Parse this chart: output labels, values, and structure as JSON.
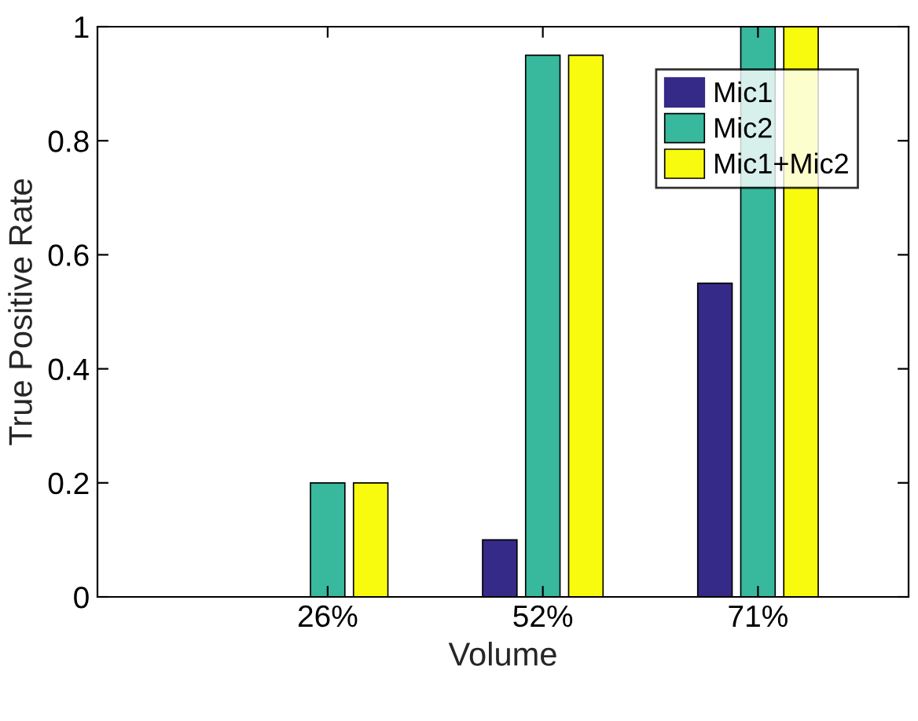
{
  "chart_data": {
    "type": "bar",
    "xlabel": "Volume",
    "ylabel": "True Positive Rate",
    "categories": [
      "26%",
      "52%",
      "71%"
    ],
    "series": [
      {
        "name": "Mic1",
        "color": "#352a87",
        "values": [
          0,
          0.1,
          0.55
        ]
      },
      {
        "name": "Mic2",
        "color": "#38b89d",
        "values": [
          0.2,
          0.95,
          1
        ]
      },
      {
        "name": "Mic1+Mic2",
        "color": "#f9fb0e",
        "values": [
          0.2,
          0.95,
          1
        ]
      }
    ],
    "ylim": [
      0,
      1
    ],
    "yticks": [
      0,
      0.2,
      0.4,
      0.6,
      0.8,
      1
    ],
    "grid": false,
    "legend": "top right"
  }
}
